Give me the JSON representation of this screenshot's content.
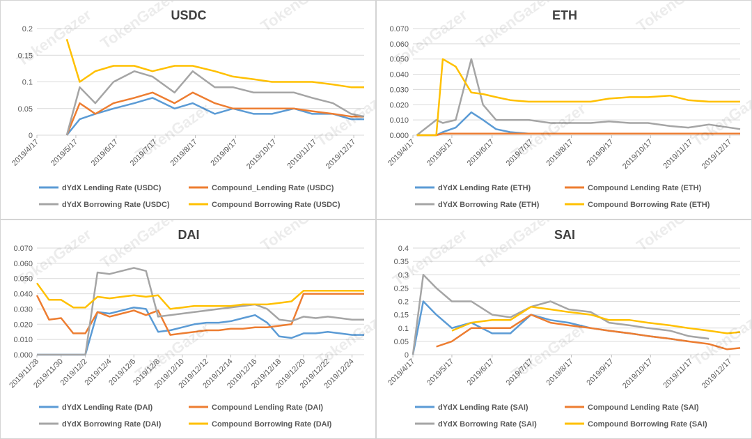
{
  "colors": {
    "dydx_lending": "#5B9BD5",
    "compound_lending": "#ED7D31",
    "dydx_borrowing": "#A5A5A5",
    "compound_borrowing": "#FFC000"
  },
  "watermark": "TokenGazer",
  "chart_data": [
    {
      "type": "line",
      "title": "USDC",
      "ylim": [
        0,
        0.2
      ],
      "yticks": [
        "0",
        "0.05",
        "0.1",
        "0.15",
        "0.2"
      ],
      "xticks": [
        "2019/4/17",
        "2019/5/17",
        "2019/6/17",
        "2019/7/17",
        "2019/8/17",
        "2019/9/17",
        "2019/10/17",
        "2019/11/17",
        "2019/12/17"
      ],
      "x": [
        "2019/5/10",
        "2019/5/20",
        "2019/6/1",
        "2019/6/15",
        "2019/7/1",
        "2019/7/15",
        "2019/8/1",
        "2019/8/15",
        "2019/9/1",
        "2019/9/15",
        "2019/10/1",
        "2019/10/15",
        "2019/11/1",
        "2019/11/15",
        "2019/12/1",
        "2019/12/15",
        "2019/12/25"
      ],
      "series": [
        {
          "name": "dYdX Lending Rate (USDC)",
          "color_key": "dydx_lending",
          "values": [
            0.0,
            0.03,
            0.04,
            0.05,
            0.06,
            0.07,
            0.05,
            0.06,
            0.04,
            0.05,
            0.04,
            0.04,
            0.05,
            0.04,
            0.04,
            0.03,
            0.03
          ]
        },
        {
          "name": "Compound_Lending Rate (USDC)",
          "color_key": "compound_lending",
          "values": [
            0.0,
            0.06,
            0.04,
            0.06,
            0.07,
            0.08,
            0.06,
            0.08,
            0.06,
            0.05,
            0.05,
            0.05,
            0.05,
            0.045,
            0.04,
            0.035,
            0.035
          ]
        },
        {
          "name": "dYdX Borrowing Rate (USDC)",
          "color_key": "dydx_borrowing",
          "values": [
            0.0,
            0.09,
            0.06,
            0.1,
            0.12,
            0.11,
            0.08,
            0.12,
            0.09,
            0.09,
            0.08,
            0.08,
            0.08,
            0.07,
            0.06,
            0.04,
            0.035
          ]
        },
        {
          "name": "Compound Borrowing Rate (USDC)",
          "color_key": "compound_borrowing",
          "values": [
            0.18,
            0.1,
            0.12,
            0.13,
            0.13,
            0.12,
            0.13,
            0.13,
            0.12,
            0.11,
            0.105,
            0.1,
            0.1,
            0.1,
            0.095,
            0.09,
            0.09
          ]
        }
      ],
      "legend": "bottom"
    },
    {
      "type": "line",
      "title": "ETH",
      "ylim": [
        0,
        0.07
      ],
      "yticks": [
        "0.000",
        "0.010",
        "0.020",
        "0.030",
        "0.040",
        "0.050",
        "0.060",
        "0.070"
      ],
      "xticks": [
        "2019/4/17",
        "2019/5/17",
        "2019/6/17",
        "2019/7/17",
        "2019/8/17",
        "2019/9/17",
        "2019/10/17",
        "2019/11/17",
        "2019/12/17"
      ],
      "x": [
        "2019/4/20",
        "2019/5/5",
        "2019/5/10",
        "2019/5/20",
        "2019/6/1",
        "2019/6/10",
        "2019/6/20",
        "2019/7/1",
        "2019/7/15",
        "2019/8/1",
        "2019/8/15",
        "2019/9/1",
        "2019/9/15",
        "2019/10/1",
        "2019/10/15",
        "2019/11/1",
        "2019/11/15",
        "2019/12/1",
        "2019/12/25"
      ],
      "series": [
        {
          "name": "dYdX Lending Rate (ETH)",
          "color_key": "dydx_lending",
          "values": [
            0,
            0,
            0.002,
            0.005,
            0.015,
            0.01,
            0.004,
            0.002,
            0.001,
            0.001,
            0.001,
            0.001,
            0.001,
            0.001,
            0.001,
            0.001,
            0.001,
            0.001,
            0.001
          ]
        },
        {
          "name": "Compound Lending Rate (ETH)",
          "color_key": "compound_lending",
          "values": [
            0,
            0,
            0.001,
            0.001,
            0.001,
            0.001,
            0.001,
            0.001,
            0.001,
            0.001,
            0.001,
            0.001,
            0.001,
            0.001,
            0.001,
            0.001,
            0.001,
            0.001,
            0.001
          ]
        },
        {
          "name": "dYdX Borrowing Rate (ETH)",
          "color_key": "dydx_borrowing",
          "values": [
            0,
            0.01,
            0.008,
            0.01,
            0.05,
            0.02,
            0.01,
            0.01,
            0.01,
            0.008,
            0.008,
            0.008,
            0.009,
            0.008,
            0.008,
            0.006,
            0.005,
            0.007,
            0.004
          ]
        },
        {
          "name": "Compound Borrowing Rate (ETH)",
          "color_key": "compound_borrowing",
          "values": [
            0,
            0,
            0.05,
            0.045,
            0.028,
            0.027,
            0.025,
            0.023,
            0.022,
            0.022,
            0.022,
            0.022,
            0.024,
            0.025,
            0.025,
            0.026,
            0.023,
            0.022,
            0.022
          ]
        }
      ],
      "legend": "bottom"
    },
    {
      "type": "line",
      "title": "DAI",
      "ylim": [
        0,
        0.07
      ],
      "yticks": [
        "0.000",
        "0.010",
        "0.020",
        "0.030",
        "0.040",
        "0.050",
        "0.060",
        "0.070"
      ],
      "xticks": [
        "2019/11/28",
        "2019/11/30",
        "2019/12/2",
        "2019/12/4",
        "2019/12/6",
        "2019/12/8",
        "2019/12/10",
        "2019/12/12",
        "2019/12/14",
        "2019/12/16",
        "2019/12/18",
        "2019/12/20",
        "2019/12/22",
        "2019/12/24"
      ],
      "x": [
        "2019/11/28",
        "2019/11/29",
        "2019/11/30",
        "2019/12/1",
        "2019/12/2",
        "2019/12/3",
        "2019/12/4",
        "2019/12/5",
        "2019/12/6",
        "2019/12/7",
        "2019/12/8",
        "2019/12/9",
        "2019/12/10",
        "2019/12/11",
        "2019/12/12",
        "2019/12/13",
        "2019/12/14",
        "2019/12/15",
        "2019/12/16",
        "2019/12/17",
        "2019/12/18",
        "2019/12/19",
        "2019/12/20",
        "2019/12/21",
        "2019/12/22",
        "2019/12/23",
        "2019/12/24",
        "2019/12/25"
      ],
      "series": [
        {
          "name": "dYdX Lending Rate (DAI)",
          "color_key": "dydx_lending",
          "values": [
            0,
            0,
            0,
            0,
            0,
            0.028,
            0.027,
            0.029,
            0.031,
            0.03,
            0.015,
            0.016,
            0.018,
            0.02,
            0.021,
            0.021,
            0.022,
            0.024,
            0.026,
            0.021,
            0.012,
            0.011,
            0.014,
            0.014,
            0.015,
            0.014,
            0.013,
            0.013
          ]
        },
        {
          "name": "Compound Lending Rate (DAI)",
          "color_key": "compound_lending",
          "values": [
            0.039,
            0.023,
            0.024,
            0.014,
            0.014,
            0.028,
            0.025,
            0.027,
            0.029,
            0.026,
            0.029,
            0.013,
            0.014,
            0.015,
            0.016,
            0.016,
            0.017,
            0.017,
            0.018,
            0.018,
            0.019,
            0.02,
            0.04,
            0.04,
            0.04,
            0.04,
            0.04,
            0.04
          ]
        },
        {
          "name": "dYdX Borrowing Rate (DAI)",
          "color_key": "dydx_borrowing",
          "values": [
            0,
            0,
            0,
            0,
            0,
            0.054,
            0.053,
            0.055,
            0.057,
            0.055,
            0.025,
            0.026,
            0.027,
            0.028,
            0.029,
            0.03,
            0.031,
            0.032,
            0.033,
            0.03,
            0.023,
            0.022,
            0.025,
            0.024,
            0.025,
            0.024,
            0.023,
            0.023
          ]
        },
        {
          "name": "Compound Borrowing Rate (DAI)",
          "color_key": "compound_borrowing",
          "values": [
            0.047,
            0.036,
            0.036,
            0.031,
            0.031,
            0.038,
            0.037,
            0.038,
            0.039,
            0.038,
            0.039,
            0.03,
            0.031,
            0.032,
            0.032,
            0.032,
            0.032,
            0.033,
            0.033,
            0.033,
            0.034,
            0.035,
            0.042,
            0.042,
            0.042,
            0.042,
            0.042,
            0.042
          ]
        }
      ],
      "legend": "bottom"
    },
    {
      "type": "line",
      "title": "SAI",
      "ylim": [
        0,
        0.4
      ],
      "yticks": [
        "0",
        "0.05",
        "0.1",
        "0.15",
        "0.2",
        "0.25",
        "0.3",
        "0.35",
        "0.4"
      ],
      "xticks": [
        "2019/4/17",
        "2019/5/17",
        "2019/6/17",
        "2019/7/17",
        "2019/8/17",
        "2019/9/17",
        "2019/10/17",
        "2019/11/17",
        "2019/12/17"
      ],
      "x": [
        "2019/4/17",
        "2019/4/25",
        "2019/5/5",
        "2019/5/17",
        "2019/6/1",
        "2019/6/17",
        "2019/7/1",
        "2019/7/17",
        "2019/8/1",
        "2019/8/15",
        "2019/9/1",
        "2019/9/15",
        "2019/10/1",
        "2019/10/15",
        "2019/11/1",
        "2019/11/15",
        "2019/12/1",
        "2019/12/15",
        "2019/12/25"
      ],
      "series": [
        {
          "name": "dYdX Lending Rate (SAI)",
          "color_key": "dydx_lending",
          "values": [
            0,
            0.2,
            0.15,
            0.1,
            0.12,
            0.08,
            0.08,
            0.15,
            0.13,
            0.12,
            0.1,
            0.09,
            0.08,
            0.07,
            0.06,
            0.05,
            null,
            null,
            null
          ]
        },
        {
          "name": "Compound Lending Rate (SAI)",
          "color_key": "compound_lending",
          "values": [
            null,
            null,
            0.03,
            0.05,
            0.1,
            0.1,
            0.1,
            0.15,
            0.12,
            0.11,
            0.1,
            0.09,
            0.08,
            0.07,
            0.06,
            0.05,
            0.04,
            0.02,
            0.025
          ]
        },
        {
          "name": "dYdX Borrowing Rate (SAI)",
          "color_key": "dydx_borrowing",
          "values": [
            0,
            0.3,
            0.25,
            0.2,
            0.2,
            0.15,
            0.14,
            0.18,
            0.2,
            0.17,
            0.16,
            0.12,
            0.11,
            0.1,
            0.09,
            0.07,
            0.06,
            null,
            null
          ]
        },
        {
          "name": "Compound Borrowing Rate (SAI)",
          "color_key": "compound_borrowing",
          "values": [
            null,
            null,
            null,
            0.09,
            0.12,
            0.13,
            0.13,
            0.18,
            0.17,
            0.16,
            0.15,
            0.13,
            0.13,
            0.12,
            0.11,
            0.1,
            0.09,
            0.08,
            0.085
          ]
        }
      ],
      "legend": "bottom"
    }
  ]
}
